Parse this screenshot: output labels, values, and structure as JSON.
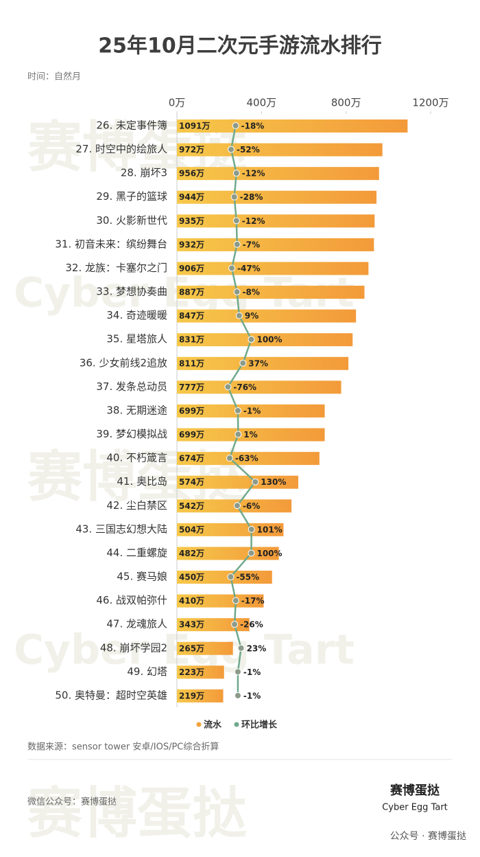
{
  "chart_data": {
    "type": "bar-line",
    "title": "25年10月二次元手游流水排行",
    "subtitle": "时间：自然月",
    "source": "数据来源：sensor tower 安卓/IOS/PC综合折算",
    "footer": "微信公众号：赛博蛋挞",
    "brand": "赛博蛋挞",
    "brand_en": "Cyber Egg Tart",
    "wechat": "公众号 · 赛博蛋挞",
    "watermark": [
      "赛博蛋挞",
      "Cyber Egg Tart"
    ],
    "categories": [
      "26. 未定事件簿",
      "27. 时空中的绘旅人",
      "28. 崩坏3",
      "29. 黑子的篮球",
      "30. 火影新世代",
      "31. 初音未来：缤纷舞台",
      "32. 龙族：卡塞尔之门",
      "33. 梦想协奏曲",
      "34. 奇迹暖暖",
      "35. 星塔旅人",
      "36. 少女前线2追放",
      "37. 发条总动员",
      "38. 无期迷途",
      "39. 梦幻模拟战",
      "40. 不朽箴言",
      "41. 奥比岛",
      "42. 尘白禁区",
      "43. 三国志幻想大陆",
      "44. 二重螺旋",
      "45. 赛马娘",
      "46. 战双帕弥什",
      "47. 龙魂旅人",
      "48. 崩坏学园2",
      "49. 幻塔",
      "50. 奥特曼：超时空英雄"
    ],
    "series": [
      {
        "name": "流水",
        "color": "#f4a23c",
        "values": [
          1091,
          972,
          956,
          944,
          935,
          932,
          906,
          887,
          847,
          831,
          811,
          777,
          699,
          699,
          674,
          574,
          542,
          504,
          482,
          450,
          410,
          343,
          265,
          223,
          219
        ],
        "value_labels": [
          "1091万",
          "972万",
          "956万",
          "944万",
          "935万",
          "932万",
          "906万",
          "887万",
          "847万",
          "831万",
          "811万",
          "777万",
          "699万",
          "699万",
          "674万",
          "574万",
          "542万",
          "504万",
          "482万",
          "450万",
          "410万",
          "343万",
          "265万",
          "223万",
          "219万"
        ]
      },
      {
        "name": "环比增长",
        "color": "#6fa98c",
        "axis": "x2",
        "values": [
          -18,
          -52,
          -12,
          -28,
          -12,
          -7,
          -47,
          -8,
          9,
          100,
          37,
          -76,
          -1,
          1,
          -63,
          130,
          -6,
          101,
          100,
          -55,
          -17,
          -26,
          23,
          -1,
          -1
        ],
        "value_labels": [
          "-18%",
          "-52%",
          "-12%",
          "-28%",
          "-12%",
          "-7%",
          "-47%",
          "-8%",
          "9%",
          "100%",
          "37%",
          "-76%",
          "-1%",
          "1%",
          "-63%",
          "130%",
          "-6%",
          "101%",
          "100%",
          "-55%",
          "-17%",
          "-26%",
          "23%",
          "-1%",
          "-1%"
        ]
      }
    ],
    "xlim": [
      0,
      1200
    ],
    "xticks": [
      {
        "value": 0,
        "label": "0万"
      },
      {
        "value": 400,
        "label": "400万"
      },
      {
        "value": 800,
        "label": "800万"
      },
      {
        "value": 1200,
        "label": "1200万"
      }
    ],
    "x2lim": [
      -460,
      1450
    ]
  }
}
